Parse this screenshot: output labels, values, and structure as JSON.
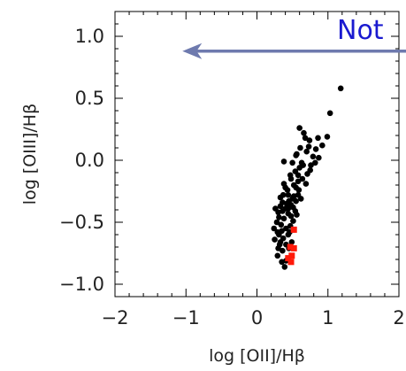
{
  "chart_data": {
    "type": "scatter",
    "xlabel": "log [OII]/Hβ",
    "ylabel": "log [OIII]/Hβ",
    "xlim": [
      -2,
      2
    ],
    "ylim": [
      -1.1,
      1.2
    ],
    "x_ticks": [
      "−2",
      "−1",
      "0",
      "1",
      "2"
    ],
    "y_ticks": [
      "−1.0",
      "−0.5",
      "0.0",
      "0.5",
      "1.0"
    ],
    "annotation": {
      "text": "Not",
      "arrow_direction": "left",
      "arrow_from": {
        "x": 2.1,
        "y": 0.88
      },
      "arrow_to": {
        "x": -1.05,
        "y": 0.88
      },
      "color": "#1a1ad0",
      "arrow_color": "#6e7aae"
    },
    "series": [
      {
        "color": "#000000",
        "marker": "circle",
        "points": [
          [
            1.18,
            0.58
          ],
          [
            1.03,
            0.38
          ],
          [
            0.99,
            0.19
          ],
          [
            0.92,
            0.12
          ],
          [
            0.86,
            0.18
          ],
          [
            0.83,
            0.09
          ],
          [
            0.79,
            0.03
          ],
          [
            0.74,
            0.16
          ],
          [
            0.68,
            0.18
          ],
          [
            0.87,
            0.02
          ],
          [
            0.76,
            -0.04
          ],
          [
            0.7,
            0.07
          ],
          [
            0.65,
            -0.04
          ],
          [
            0.61,
            0.1
          ],
          [
            0.55,
            0.04
          ],
          [
            0.82,
            -0.02
          ],
          [
            0.73,
            0.11
          ],
          [
            0.66,
            0.22
          ],
          [
            0.6,
            0.26
          ],
          [
            0.71,
            -0.11
          ],
          [
            0.58,
            -0.17
          ],
          [
            0.64,
            -0.15
          ],
          [
            0.54,
            -0.09
          ],
          [
            0.5,
            -0.02
          ],
          [
            0.47,
            -0.12
          ],
          [
            0.59,
            -0.24
          ],
          [
            0.69,
            -0.19
          ],
          [
            0.44,
            -0.28
          ],
          [
            0.75,
            -0.08
          ],
          [
            0.63,
            -0.02
          ],
          [
            0.56,
            0.05
          ],
          [
            0.38,
            -0.01
          ],
          [
            0.52,
            -0.2
          ],
          [
            0.6,
            -0.06
          ],
          [
            0.52,
            -0.29
          ],
          [
            0.45,
            -0.33
          ],
          [
            0.4,
            -0.22
          ],
          [
            0.37,
            -0.28
          ],
          [
            0.33,
            -0.37
          ],
          [
            0.48,
            -0.36
          ],
          [
            0.54,
            -0.41
          ],
          [
            0.48,
            -0.45
          ],
          [
            0.4,
            -0.39
          ],
          [
            0.36,
            -0.41
          ],
          [
            0.31,
            -0.46
          ],
          [
            0.28,
            -0.5
          ],
          [
            0.34,
            -0.52
          ],
          [
            0.29,
            -0.58
          ],
          [
            0.41,
            -0.55
          ],
          [
            0.47,
            -0.53
          ],
          [
            0.25,
            -0.64
          ],
          [
            0.33,
            -0.66
          ],
          [
            0.37,
            -0.63
          ],
          [
            0.3,
            -0.71
          ],
          [
            0.36,
            -0.73
          ],
          [
            0.41,
            -0.68
          ],
          [
            0.29,
            -0.77
          ],
          [
            0.35,
            -0.82
          ],
          [
            0.41,
            -0.81
          ],
          [
            0.39,
            -0.86
          ],
          [
            0.51,
            -0.49
          ],
          [
            0.44,
            -0.43
          ],
          [
            0.38,
            -0.47
          ],
          [
            0.26,
            -0.39
          ],
          [
            0.33,
            -0.3
          ],
          [
            0.42,
            -0.35
          ],
          [
            0.5,
            -0.31
          ],
          [
            0.56,
            -0.44
          ],
          [
            0.46,
            -0.58
          ],
          [
            0.52,
            -0.56
          ],
          [
            0.44,
            -0.6
          ],
          [
            0.31,
            -0.6
          ],
          [
            0.24,
            -0.55
          ],
          [
            0.35,
            -0.57
          ],
          [
            0.49,
            -0.66
          ],
          [
            0.45,
            -0.71
          ],
          [
            0.32,
            -0.68
          ],
          [
            0.62,
            -0.31
          ],
          [
            0.58,
            -0.28
          ],
          [
            0.55,
            -0.33
          ],
          [
            0.43,
            -0.24
          ],
          [
            0.38,
            -0.19
          ],
          [
            0.36,
            -0.34
          ],
          [
            0.44,
            -0.39
          ],
          [
            0.3,
            -0.42
          ],
          [
            0.51,
            -0.38
          ],
          [
            0.58,
            -0.12
          ],
          [
            0.48,
            -0.15
          ],
          [
            0.55,
            -0.22
          ]
        ]
      },
      {
        "color": "#ff1a0a",
        "marker": "square",
        "points": [
          [
            0.52,
            -0.56
          ],
          [
            0.47,
            -0.7
          ],
          [
            0.52,
            -0.71
          ],
          [
            0.44,
            -0.79
          ],
          [
            0.49,
            -0.77
          ],
          [
            0.48,
            -0.82
          ]
        ]
      }
    ]
  }
}
